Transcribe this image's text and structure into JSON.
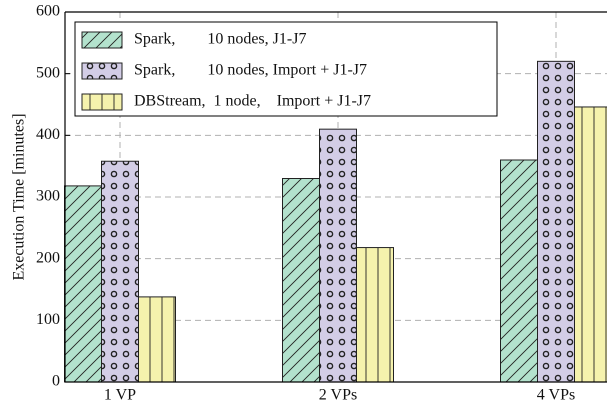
{
  "chart_data": {
    "type": "bar",
    "y_label": "Execution Time [minutes]",
    "categories": [
      "1 VP",
      "2 VPs",
      "4 VPs"
    ],
    "series": [
      {
        "name": "Spark,        10 nodes, J1-J7",
        "color": "#b3e2cd",
        "hatch": "slash",
        "values": [
          318,
          330,
          360
        ]
      },
      {
        "name": "Spark,        10 nodes, Import + J1-J7",
        "color": "#d3cde6",
        "hatch": "dot",
        "values": [
          358,
          410,
          520
        ]
      },
      {
        "name": "DBStream,  1 node,    Import + J1-J7",
        "color": "#f5f2ad",
        "hatch": "vert",
        "values": [
          138,
          218,
          446
        ]
      }
    ],
    "ylim": [
      0,
      600
    ],
    "yticks": [
      0,
      100,
      200,
      300,
      400,
      500,
      600
    ],
    "grid": true,
    "legend": "upper left"
  }
}
